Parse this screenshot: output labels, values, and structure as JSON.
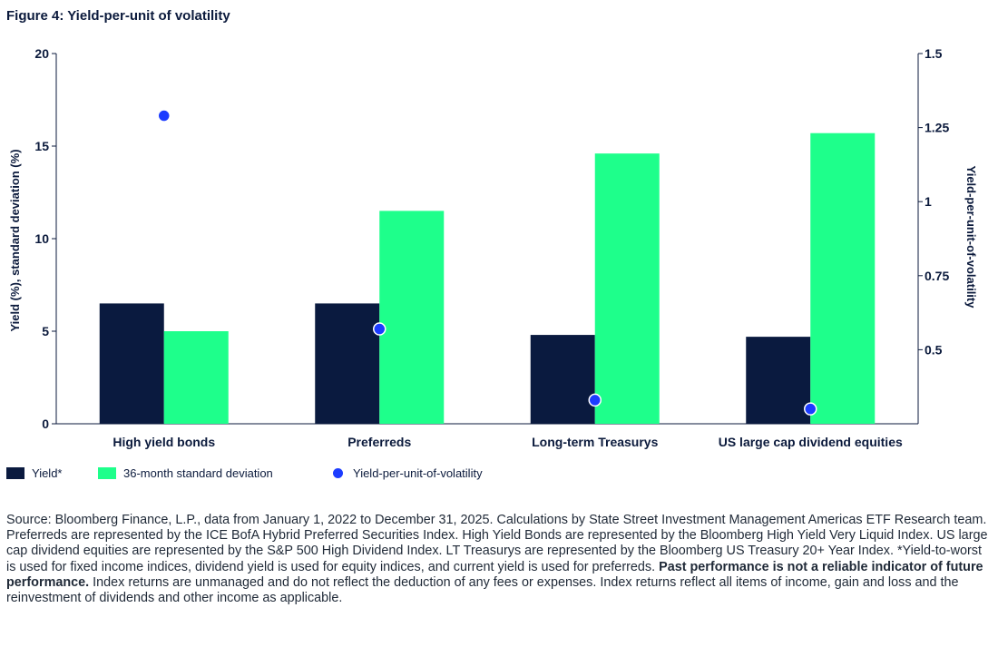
{
  "title": "Figure 4: Yield-per-unit of volatility",
  "chart_data": {
    "type": "bar",
    "categories": [
      "High yield bonds",
      "Preferreds",
      "Long-term Treasurys",
      "US large cap dividend equities"
    ],
    "series": [
      {
        "name": "Yield*",
        "values": [
          6.5,
          6.5,
          4.8,
          4.7
        ],
        "color": "#0a1a3f",
        "axis": "left"
      },
      {
        "name": "36-month standard deviation",
        "values": [
          5.0,
          11.5,
          14.6,
          15.7
        ],
        "color": "#1eff8b",
        "axis": "left"
      },
      {
        "name": "Yield-per-unit-of-volatility",
        "values": [
          1.29,
          0.57,
          0.33,
          0.3
        ],
        "color": "#1c3cff",
        "axis": "right",
        "type": "scatter"
      }
    ],
    "ylabel": "Yield (%), standard deviation (%)",
    "ylabel_right": "Yield-per-unit-of-volatility",
    "ylim": [
      0,
      20
    ],
    "yticks": [
      "0",
      "5",
      "10",
      "15",
      "20"
    ],
    "ylim_right": [
      0.25,
      1.5
    ],
    "yticks_right": [
      "0.5",
      "0.75",
      "1",
      "1.25",
      "1.5"
    ],
    "grid": false,
    "legend_position": "bottom-left"
  },
  "legend": {
    "yield": "Yield*",
    "stdev": "36-month standard deviation",
    "ratio": "Yield-per-unit-of-volatility"
  },
  "footnote": {
    "part1": "Source: Bloomberg Finance, L.P., data from January 1, 2022 to December 31, 2025. Calculations by State Street Investment Management Americas ETF Research team. Preferreds are represented by the ICE BofA Hybrid Preferred Securities Index. High Yield Bonds are represented by the Bloomberg High Yield Very Liquid Index. US large cap dividend equities are represented by the S&P 500 High Dividend Index. LT Treasurys are represented by the Bloomberg US Treasury 20+ Year Index. *Yield-to-worst is used for fixed income indices, dividend yield is used for equity indices, and current yield is used for preferreds. ",
    "bold": "Past performance is not a reliable indicator of future performance.",
    "part2": " Index returns are unmanaged and do not reflect the deduction of any fees or expenses. Index returns reflect all items of income, gain and loss and the reinvestment of dividends and other income as applicable."
  }
}
